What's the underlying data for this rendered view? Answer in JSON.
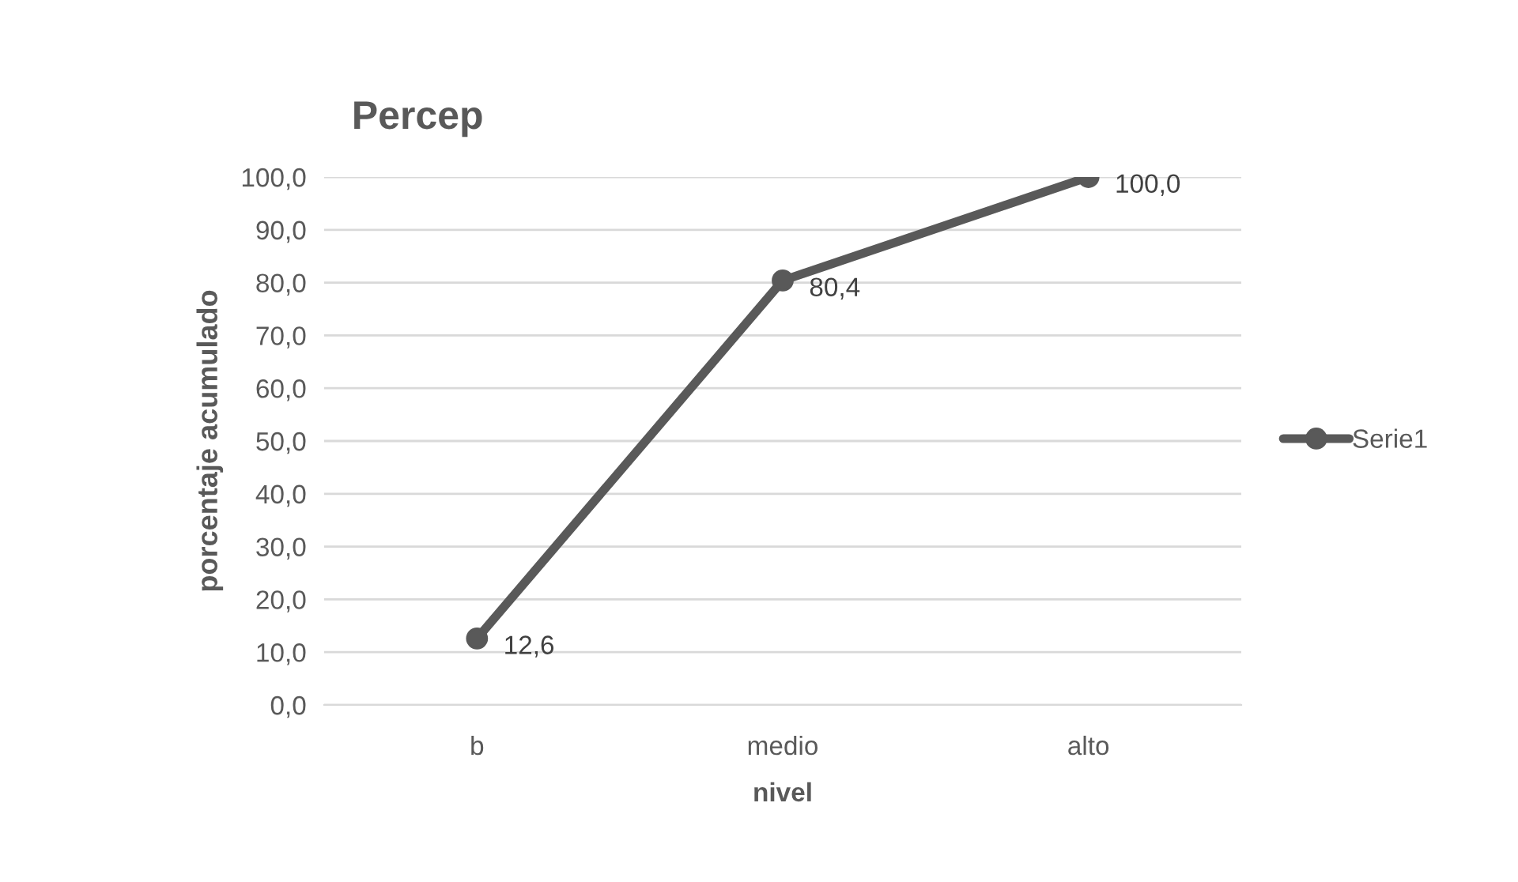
{
  "chart_data": {
    "type": "line",
    "title": "Percep",
    "xlabel": "nivel",
    "ylabel": "porcentaje acumulado",
    "categories": [
      "b",
      "medio",
      "alto"
    ],
    "series": [
      {
        "name": "Serie1",
        "color": "#595959",
        "values": [
          12.6,
          80.4,
          100.0
        ],
        "value_labels": [
          "12,6",
          "80,4",
          "100,0"
        ]
      }
    ],
    "ylim": [
      0,
      100
    ],
    "yticks": [
      {
        "value": 0,
        "label": "0,0"
      },
      {
        "value": 10,
        "label": "10,0"
      },
      {
        "value": 20,
        "label": "20,0"
      },
      {
        "value": 30,
        "label": "30,0"
      },
      {
        "value": 40,
        "label": "40,0"
      },
      {
        "value": 50,
        "label": "50,0"
      },
      {
        "value": 60,
        "label": "60,0"
      },
      {
        "value": 70,
        "label": "70,0"
      },
      {
        "value": 80,
        "label": "80,0"
      },
      {
        "value": 90,
        "label": "90,0"
      },
      {
        "value": 100,
        "label": "100,0"
      }
    ],
    "grid": "y",
    "legend": "right",
    "marker": "circle",
    "line_style": "solid"
  }
}
